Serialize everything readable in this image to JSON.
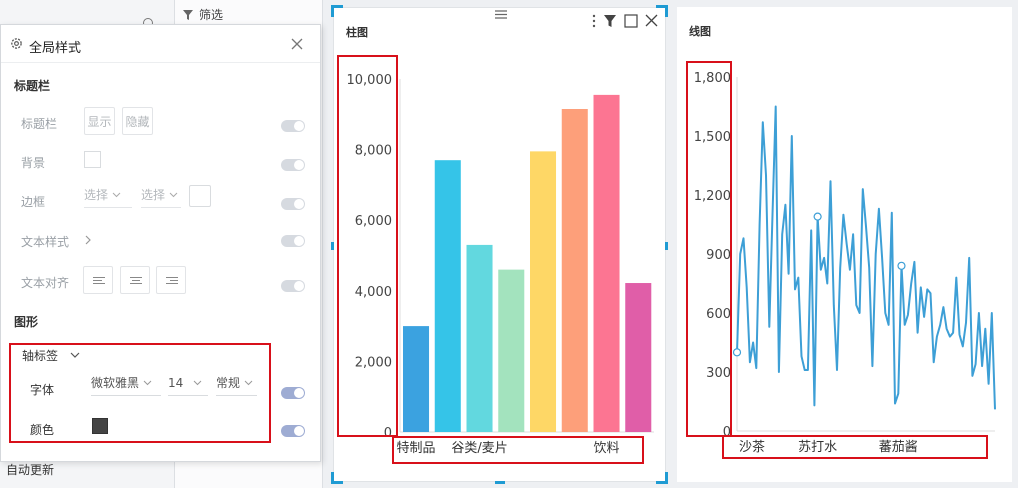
{
  "sidebar": {
    "filter_label": "筛选",
    "auto_update_label": "自动更新"
  },
  "panel": {
    "title": "全局样式",
    "section_titlebar": "标题栏",
    "titlebar_label": "标题栏",
    "show_label": "显示",
    "hide_label": "隐藏",
    "background_label": "背景",
    "border_label": "边框",
    "border_select1": "选择",
    "border_select2": "选择",
    "text_style_label": "文本样式",
    "text_align_label": "文本对齐",
    "section_graphics": "图形",
    "axis_label_title": "轴标签",
    "font_label": "字体",
    "font_family": "微软雅黑",
    "font_size": "14",
    "font_weight": "常规",
    "color_label": "颜色",
    "color_value": "#444444"
  },
  "bar_chart": {
    "title": "柱图",
    "chart_data": {
      "type": "bar",
      "categories": [
        "特制品",
        "",
        "谷类/麦片",
        "",
        "",
        "",
        "饮料",
        ""
      ],
      "values": [
        3000,
        7700,
        5300,
        4600,
        7950,
        9150,
        9550,
        4220
      ],
      "colors": [
        "#3ba2e0",
        "#35c4e8",
        "#62d8df",
        "#a3e3be",
        "#fed766",
        "#fd9f7a",
        "#fc7592",
        "#e05ea8"
      ],
      "y_ticks": [
        "10,000",
        "8,000",
        "6,000",
        "4,000",
        "2,000",
        "0"
      ],
      "ylim": [
        0,
        10000
      ]
    }
  },
  "line_chart": {
    "title": "线图",
    "chart_data": {
      "type": "line",
      "color": "#3d9fd6",
      "y_ticks": [
        "1,800",
        "1,500",
        "1,200",
        "900",
        "600",
        "300",
        "0"
      ],
      "ylim": [
        0,
        1800
      ],
      "x_labels": [
        "沙茶",
        "苏打水",
        "蕃茄酱"
      ],
      "values": [
        400,
        900,
        980,
        730,
        350,
        450,
        320,
        1050,
        1570,
        1300,
        530,
        1100,
        1650,
        300,
        1000,
        1150,
        800,
        1500,
        720,
        780,
        380,
        310,
        310,
        1020,
        130,
        1090,
        820,
        880,
        750,
        1270,
        640,
        310,
        830,
        1100,
        950,
        820,
        1000,
        640,
        600,
        1230,
        1040,
        830,
        330,
        900,
        1130,
        880,
        600,
        540,
        1110,
        140,
        190,
        840,
        540,
        590,
        750,
        860,
        500,
        730,
        580,
        720,
        700,
        350,
        480,
        540,
        630,
        520,
        480,
        500,
        780,
        490,
        430,
        550,
        880,
        280,
        340,
        600,
        330,
        520,
        240,
        600,
        110
      ],
      "markers": [
        0,
        25,
        51
      ]
    }
  }
}
